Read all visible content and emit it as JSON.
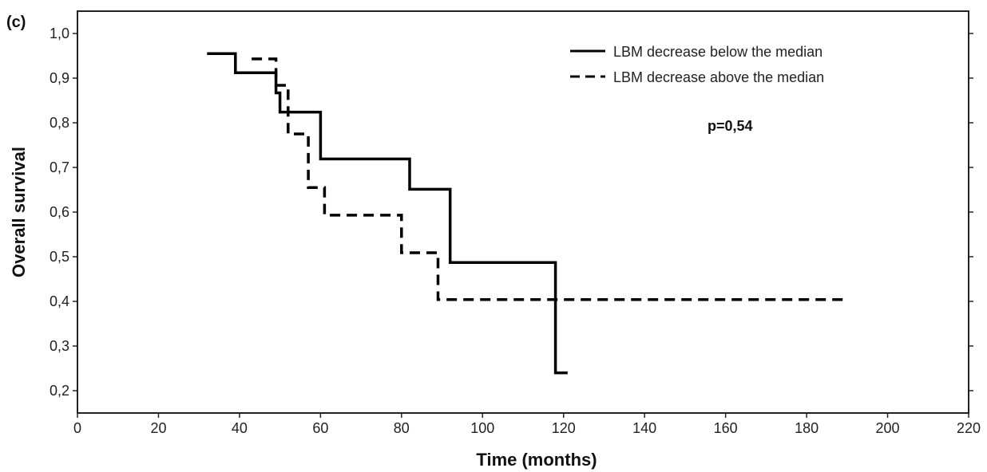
{
  "chart_data": {
    "type": "line",
    "panel_label": "(c)",
    "xlabel": "Time (months)",
    "ylabel": "Overall survival",
    "xlim": [
      0,
      220
    ],
    "ylim": [
      0.15,
      1.05
    ],
    "x_ticks": [
      0,
      20,
      40,
      60,
      80,
      100,
      120,
      140,
      160,
      180,
      200,
      220
    ],
    "y_ticks": [
      "1,0",
      "0,9",
      "0,8",
      "0,7",
      "0,6",
      "0,5",
      "0,4",
      "0,3",
      "0,2"
    ],
    "y_tick_values": [
      1.0,
      0.9,
      0.8,
      0.7,
      0.6,
      0.5,
      0.4,
      0.3,
      0.2
    ],
    "grid": false,
    "legend_position": "top-right",
    "annotation": "p=0,54",
    "series": [
      {
        "name": "LBM decrease below the median",
        "style": "solid",
        "step": true,
        "points": [
          [
            32,
            0.955
          ],
          [
            39,
            0.955
          ],
          [
            39,
            0.912
          ],
          [
            49,
            0.912
          ],
          [
            49,
            0.867
          ],
          [
            50,
            0.867
          ],
          [
            50,
            0.824
          ],
          [
            60,
            0.824
          ],
          [
            60,
            0.719
          ],
          [
            82,
            0.719
          ],
          [
            82,
            0.651
          ],
          [
            92,
            0.651
          ],
          [
            92,
            0.487
          ],
          [
            118,
            0.487
          ],
          [
            118,
            0.24
          ],
          [
            121,
            0.24
          ]
        ]
      },
      {
        "name": "LBM decrease above the median",
        "style": "dashed",
        "step": true,
        "points": [
          [
            43,
            0.943
          ],
          [
            49,
            0.943
          ],
          [
            49,
            0.884
          ],
          [
            52,
            0.884
          ],
          [
            52,
            0.775
          ],
          [
            57,
            0.775
          ],
          [
            57,
            0.655
          ],
          [
            61,
            0.655
          ],
          [
            61,
            0.593
          ],
          [
            80,
            0.593
          ],
          [
            80,
            0.509
          ],
          [
            89,
            0.509
          ],
          [
            89,
            0.404
          ],
          [
            189,
            0.404
          ]
        ]
      }
    ]
  }
}
